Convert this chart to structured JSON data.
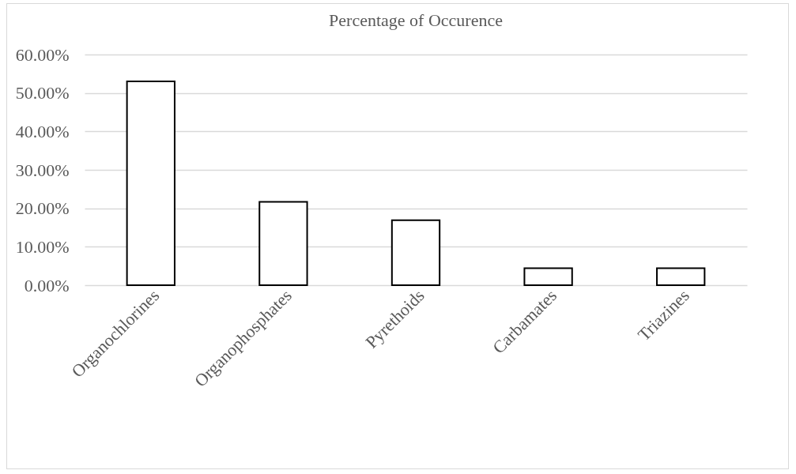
{
  "chart_data": {
    "type": "bar",
    "title": "Percentage of Occurence",
    "categories": [
      "Organochlorines",
      "Organophosphates",
      "Pyrethoids",
      "Carbamates",
      "Triazines"
    ],
    "values": [
      53,
      21.7,
      16.9,
      4.4,
      4.4
    ],
    "color": "#ffffff",
    "ylim": [
      0,
      60
    ],
    "yticks": [
      {
        "value": 0,
        "label": "0.00%"
      },
      {
        "value": 10,
        "label": "10.00%"
      },
      {
        "value": 20,
        "label": "20.00%"
      },
      {
        "value": 30,
        "label": "30.00%"
      },
      {
        "value": 40,
        "label": "40.00%"
      },
      {
        "value": 50,
        "label": "50.00%"
      },
      {
        "value": 60,
        "label": "60.00%"
      }
    ],
    "grid": "y"
  }
}
